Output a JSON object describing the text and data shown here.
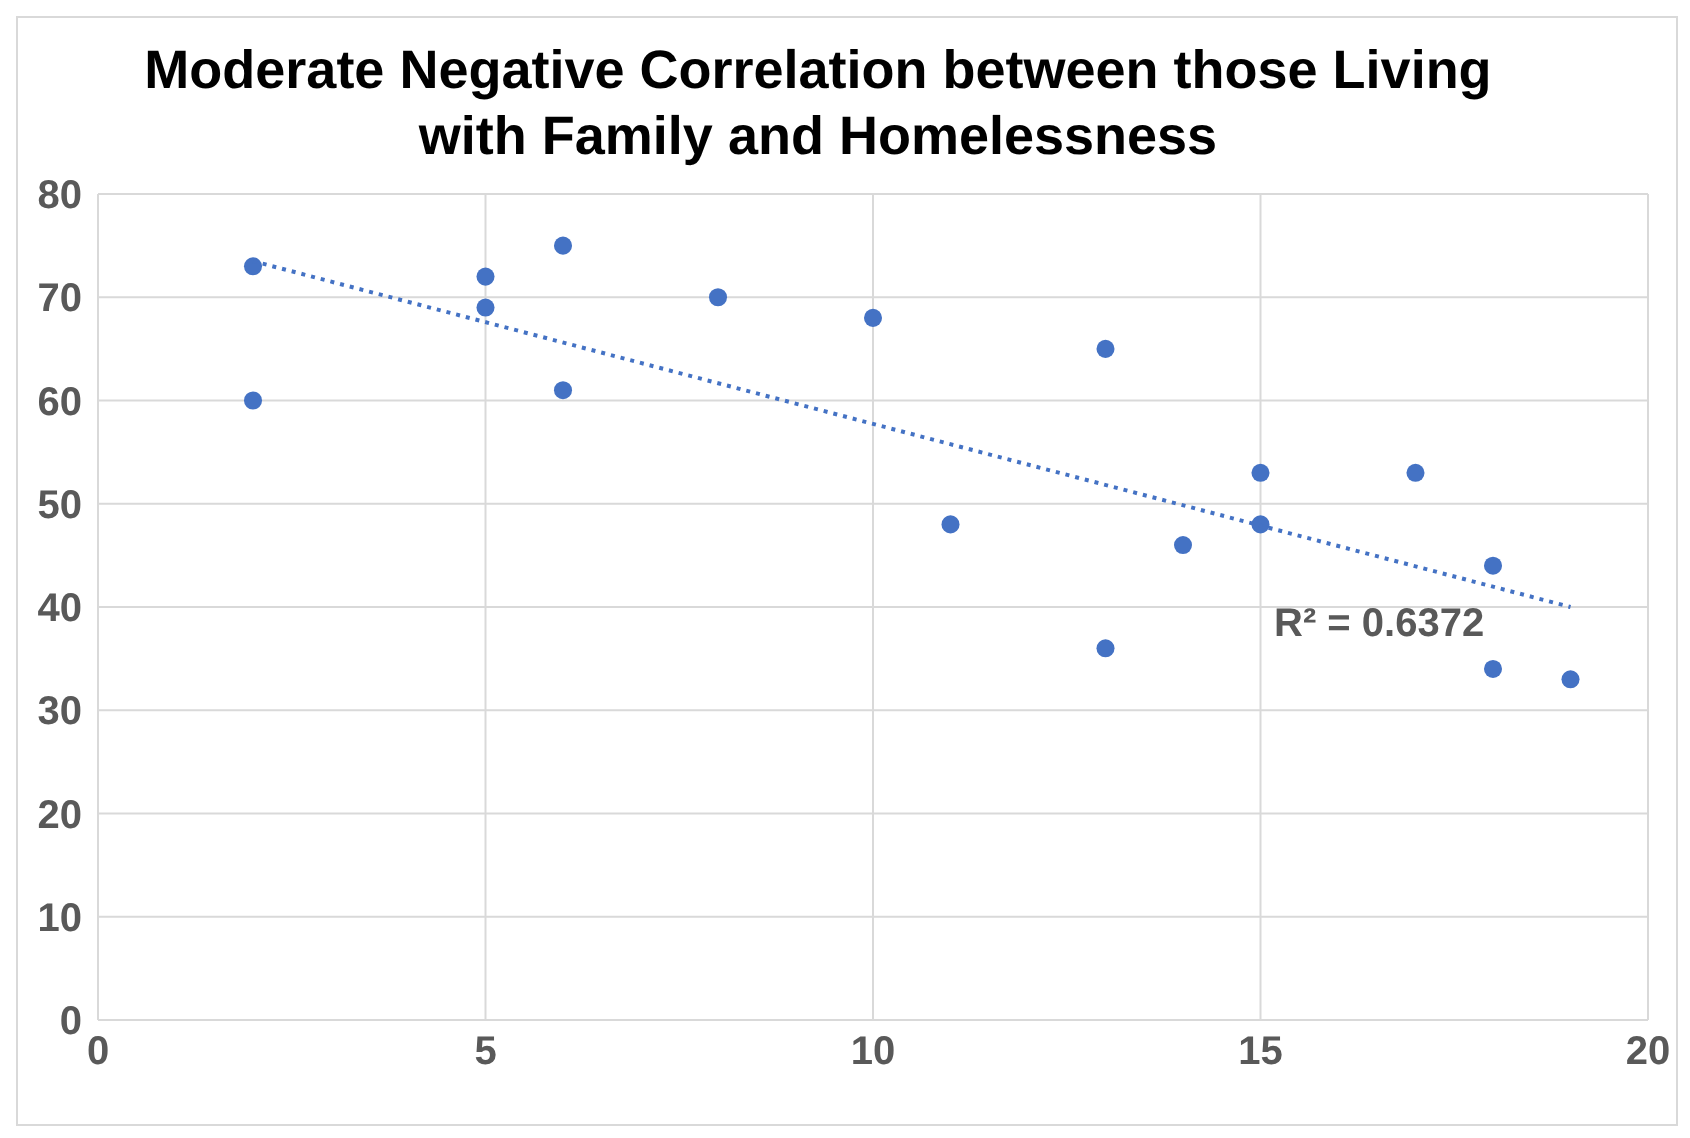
{
  "chart_data": {
    "type": "scatter",
    "title": "Moderate Negative Correlation between those Living with Family and Homelessness",
    "xlim": [
      0,
      20
    ],
    "xticks": [
      0,
      5,
      10,
      15,
      20
    ],
    "ylim": [
      0,
      80
    ],
    "yticks": [
      0,
      10,
      20,
      30,
      40,
      50,
      60,
      70,
      80
    ],
    "grid": true,
    "series": [
      {
        "marker": "circle",
        "color": "#4472c4",
        "x": [
          2,
          2,
          5,
          5,
          6,
          6,
          8,
          10,
          11,
          13,
          13,
          14,
          15,
          15,
          17,
          18,
          18,
          19
        ],
        "values": [
          73,
          60,
          72,
          69,
          75,
          61,
          70,
          68,
          48,
          65,
          36,
          46,
          53,
          48,
          53,
          44,
          34,
          33
        ]
      },
      {
        "type": "line",
        "color": "#4472c4",
        "line_style": "dotted",
        "x": [
          2,
          19
        ],
        "values": [
          73.5,
          40
        ]
      }
    ],
    "annotations": [
      "R² = 0.6372"
    ]
  }
}
